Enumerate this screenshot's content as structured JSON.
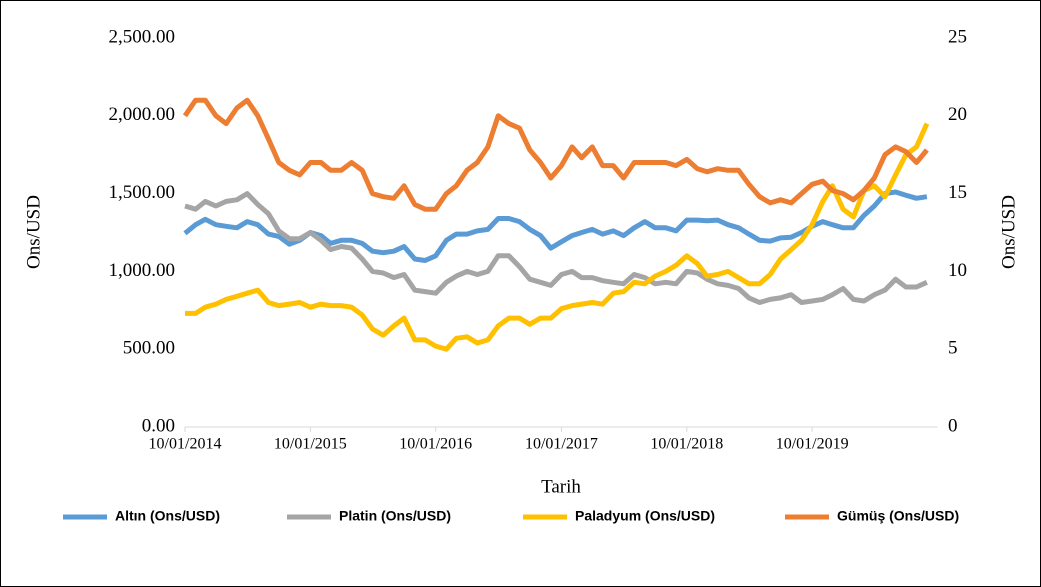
{
  "chart_data": {
    "type": "line",
    "x_label": "Tarih",
    "y_label": "Ons/USD",
    "y2_label": "Ons/USD",
    "x": [
      "10/01/2014",
      "10/02/2014",
      "10/03/2014",
      "10/04/2014",
      "10/05/2014",
      "10/06/2014",
      "10/07/2014",
      "10/08/2014",
      "10/09/2014",
      "10/10/2014",
      "10/11/2014",
      "10/12/2014",
      "10/01/2015",
      "10/02/2015",
      "10/03/2015",
      "10/04/2015",
      "10/05/2015",
      "10/06/2015",
      "10/07/2015",
      "10/08/2015",
      "10/09/2015",
      "10/10/2015",
      "10/11/2015",
      "10/12/2015",
      "10/01/2016",
      "10/02/2016",
      "10/03/2016",
      "10/04/2016",
      "10/05/2016",
      "10/06/2016",
      "10/07/2016",
      "10/08/2016",
      "10/09/2016",
      "10/10/2016",
      "10/11/2016",
      "10/12/2016",
      "10/01/2017",
      "10/02/2017",
      "10/03/2017",
      "10/04/2017",
      "10/05/2017",
      "10/06/2017",
      "10/07/2017",
      "10/08/2017",
      "10/09/2017",
      "10/10/2017",
      "10/11/2017",
      "10/12/2017",
      "10/01/2018",
      "10/02/2018",
      "10/03/2018",
      "10/04/2018",
      "10/05/2018",
      "10/06/2018",
      "10/07/2018",
      "10/08/2018",
      "10/09/2018",
      "10/10/2018",
      "10/11/2018",
      "10/12/2018",
      "10/01/2019",
      "10/02/2019",
      "10/03/2019",
      "10/04/2019",
      "10/05/2019",
      "10/06/2019",
      "10/07/2019",
      "10/08/2019",
      "10/09/2019",
      "10/10/2019",
      "10/11/2019",
      "10/12/2019"
    ],
    "xlim": [
      "10/01/2014",
      "10/01/2020"
    ],
    "xticks": [
      "10/01/2014",
      "10/01/2015",
      "10/01/2016",
      "10/01/2017",
      "10/01/2018",
      "10/01/2019"
    ],
    "ylim": [
      0,
      2500
    ],
    "yticks": [
      {
        "value": 0,
        "label": "0.00"
      },
      {
        "value": 500,
        "label": "500.00"
      },
      {
        "value": 1000,
        "label": "1,000.00"
      },
      {
        "value": 1500,
        "label": "1,500.00"
      },
      {
        "value": 2000,
        "label": "2,000.00"
      },
      {
        "value": 2500,
        "label": "2,500.00"
      }
    ],
    "y2lim": [
      0,
      25
    ],
    "y2ticks": [
      0,
      5,
      10,
      15,
      20,
      25
    ],
    "legend": "bottom",
    "series": [
      {
        "name": "Altın (Ons/USD)",
        "color": "#5b9bd5",
        "values": [
          1245,
          1300,
          1335,
          1300,
          1290,
          1280,
          1320,
          1300,
          1240,
          1225,
          1175,
          1200,
          1250,
          1230,
          1180,
          1200,
          1200,
          1180,
          1130,
          1120,
          1130,
          1160,
          1080,
          1070,
          1100,
          1200,
          1240,
          1240,
          1260,
          1270,
          1340,
          1340,
          1320,
          1270,
          1230,
          1150,
          1190,
          1230,
          1250,
          1270,
          1240,
          1260,
          1230,
          1280,
          1320,
          1280,
          1280,
          1260,
          1330,
          1330,
          1325,
          1330,
          1300,
          1280,
          1240,
          1200,
          1195,
          1215,
          1220,
          1250,
          1290,
          1320,
          1300,
          1280,
          1280,
          1360,
          1420,
          1500,
          1510,
          1490,
          1470,
          1480
        ]
      },
      {
        "name": "Platin (Ons/USD)",
        "color": "#a5a5a5",
        "values": [
          1420,
          1400,
          1450,
          1420,
          1450,
          1460,
          1500,
          1430,
          1370,
          1260,
          1210,
          1210,
          1250,
          1200,
          1140,
          1160,
          1150,
          1080,
          1000,
          990,
          960,
          980,
          880,
          870,
          860,
          930,
          970,
          1000,
          980,
          1000,
          1100,
          1100,
          1030,
          950,
          930,
          910,
          980,
          1000,
          960,
          960,
          940,
          930,
          920,
          980,
          960,
          920,
          930,
          920,
          1000,
          990,
          950,
          920,
          910,
          890,
          830,
          800,
          820,
          830,
          850,
          800,
          810,
          820,
          850,
          890,
          820,
          810,
          850,
          880,
          950,
          900,
          900,
          930
        ]
      },
      {
        "name": "Paladyum (Ons/USD)",
        "color": "#ffc000",
        "values": [
          730,
          730,
          770,
          790,
          820,
          840,
          860,
          880,
          800,
          780,
          790,
          800,
          770,
          790,
          780,
          780,
          770,
          720,
          630,
          590,
          650,
          700,
          560,
          560,
          520,
          500,
          570,
          580,
          540,
          560,
          650,
          700,
          700,
          660,
          700,
          700,
          760,
          780,
          790,
          800,
          790,
          860,
          870,
          930,
          920,
          970,
          1000,
          1040,
          1100,
          1050,
          970,
          980,
          1000,
          960,
          920,
          920,
          980,
          1080,
          1140,
          1200,
          1300,
          1450,
          1550,
          1400,
          1350,
          1520,
          1550,
          1480,
          1620,
          1750,
          1800,
          1950
        ]
      },
      {
        "name": "Gümüş (Ons/USD)",
        "color": "#ed7d31",
        "axis": "y2",
        "values": [
          20,
          21,
          21,
          20,
          19.5,
          20.5,
          21,
          20,
          18.5,
          17,
          16.5,
          16.2,
          17,
          17,
          16.5,
          16.5,
          17,
          16.5,
          15,
          14.8,
          14.7,
          15.5,
          14.3,
          14,
          14,
          15,
          15.5,
          16.5,
          17,
          18,
          20,
          19.5,
          19.2,
          17.8,
          17,
          16,
          16.8,
          18,
          17.3,
          18,
          16.8,
          16.8,
          16,
          17,
          17,
          17,
          17,
          16.8,
          17.2,
          16.6,
          16.4,
          16.6,
          16.5,
          16.5,
          15.6,
          14.8,
          14.4,
          14.6,
          14.4,
          15,
          15.6,
          15.8,
          15.2,
          15,
          14.6,
          15.2,
          16,
          17.5,
          18,
          17.7,
          17,
          17.8
        ]
      }
    ]
  }
}
